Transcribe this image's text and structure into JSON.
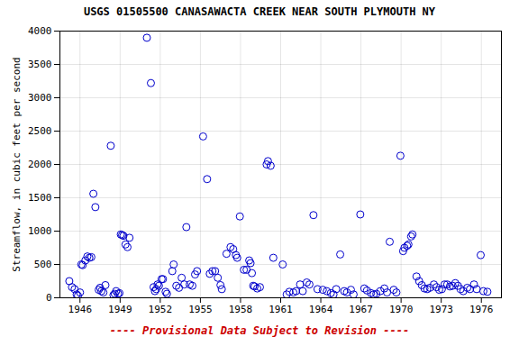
{
  "chart_data": {
    "type": "scatter",
    "title": "USGS 01505500 CANASAWACTA CREEK NEAR SOUTH PLYMOUTH NY",
    "ylabel": "Streamflow, in cubic feet per second",
    "annotations": [
      {
        "text": "---- Provisional Data Subject to Revision ----",
        "color": "#cc0000"
      }
    ],
    "xlim": [
      1944.5,
      1977.5
    ],
    "ylim": [
      0,
      4000
    ],
    "xticks": [
      1946,
      1949,
      1952,
      1955,
      1958,
      1961,
      1964,
      1967,
      1970,
      1973,
      1976
    ],
    "yticks": [
      0,
      500,
      1000,
      1500,
      2000,
      2500,
      3000,
      3500,
      4000
    ],
    "grid": true,
    "color": "#0000CC",
    "marker": "circle",
    "x": [
      1945.2,
      1945.4,
      1945.6,
      1945.75,
      1945.85,
      1946.0,
      1946.1,
      1946.2,
      1946.4,
      1946.55,
      1946.7,
      1946.85,
      1947.0,
      1947.15,
      1947.4,
      1947.5,
      1947.6,
      1947.75,
      1947.9,
      1948.3,
      1948.5,
      1948.6,
      1948.7,
      1948.85,
      1948.95,
      1949.05,
      1949.15,
      1949.25,
      1949.4,
      1949.55,
      1949.7,
      1951.0,
      1951.3,
      1951.5,
      1951.6,
      1951.7,
      1951.8,
      1951.9,
      1952.1,
      1952.2,
      1952.4,
      1952.5,
      1952.9,
      1953.0,
      1953.2,
      1953.4,
      1953.6,
      1953.8,
      1953.95,
      1954.2,
      1954.4,
      1954.6,
      1954.75,
      1955.2,
      1955.5,
      1955.7,
      1955.9,
      1956.1,
      1956.3,
      1956.5,
      1956.6,
      1956.95,
      1957.25,
      1957.45,
      1957.65,
      1957.75,
      1957.95,
      1958.25,
      1958.45,
      1958.65,
      1958.75,
      1958.85,
      1958.95,
      1959.05,
      1959.25,
      1959.45,
      1959.95,
      1960.05,
      1960.25,
      1960.45,
      1961.15,
      1961.45,
      1961.65,
      1961.95,
      1962.15,
      1962.45,
      1962.65,
      1962.95,
      1963.15,
      1963.45,
      1963.75,
      1964.15,
      1964.45,
      1964.75,
      1964.95,
      1965.15,
      1965.45,
      1965.75,
      1965.95,
      1966.25,
      1966.45,
      1966.95,
      1967.25,
      1967.45,
      1967.75,
      1967.95,
      1968.15,
      1968.45,
      1968.75,
      1968.95,
      1969.15,
      1969.45,
      1969.65,
      1969.95,
      1970.15,
      1970.25,
      1970.45,
      1970.55,
      1970.75,
      1970.85,
      1971.15,
      1971.35,
      1971.55,
      1971.75,
      1971.95,
      1972.15,
      1972.45,
      1972.65,
      1972.85,
      1973.05,
      1973.25,
      1973.45,
      1973.65,
      1973.85,
      1974.05,
      1974.25,
      1974.45,
      1974.65,
      1974.95,
      1975.15,
      1975.45,
      1975.65,
      1975.95,
      1976.15,
      1976.45
    ],
    "values": [
      250,
      160,
      130,
      50,
      30,
      80,
      500,
      490,
      560,
      620,
      600,
      610,
      1560,
      1360,
      120,
      150,
      100,
      80,
      190,
      2280,
      40,
      60,
      100,
      60,
      70,
      950,
      940,
      930,
      800,
      760,
      900,
      3900,
      3220,
      160,
      100,
      130,
      200,
      180,
      280,
      280,
      90,
      60,
      400,
      500,
      180,
      150,
      300,
      200,
      1060,
      200,
      180,
      350,
      400,
      2420,
      1780,
      360,
      400,
      400,
      300,
      190,
      130,
      660,
      760,
      730,
      640,
      600,
      1220,
      420,
      420,
      560,
      520,
      370,
      180,
      170,
      140,
      160,
      2000,
      2050,
      1980,
      600,
      500,
      50,
      90,
      80,
      100,
      200,
      100,
      230,
      200,
      1240,
      130,
      120,
      100,
      70,
      50,
      130,
      650,
      100,
      80,
      120,
      50,
      1250,
      140,
      110,
      70,
      50,
      60,
      100,
      140,
      80,
      840,
      120,
      80,
      2130,
      700,
      750,
      780,
      800,
      920,
      950,
      320,
      250,
      190,
      140,
      130,
      150,
      200,
      160,
      120,
      130,
      200,
      200,
      170,
      180,
      220,
      180,
      130,
      100,
      150,
      130,
      200,
      130,
      640,
      100,
      90
    ]
  }
}
